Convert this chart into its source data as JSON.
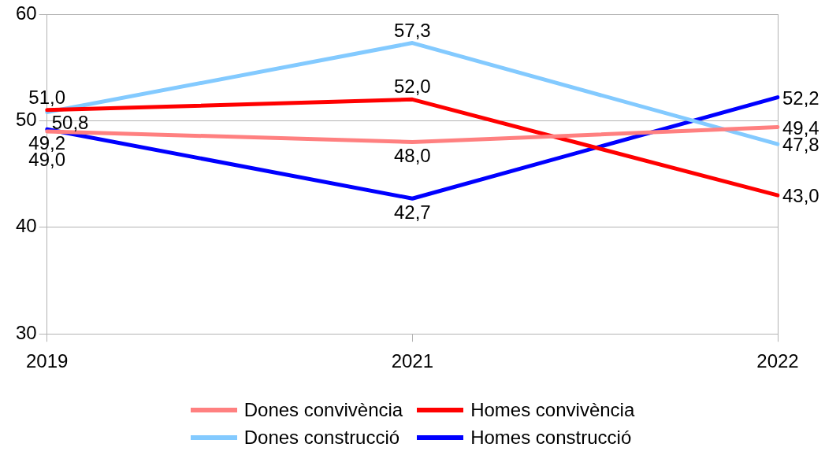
{
  "chart_data": {
    "type": "line",
    "categories": [
      "2019",
      "2021",
      "2022"
    ],
    "ylim": [
      30,
      60
    ],
    "yticks": [
      30,
      40,
      50,
      60
    ],
    "grid": "y",
    "legend": "bottom",
    "marker": "none",
    "line_style": "solid",
    "series": [
      {
        "name": "Dones convivència",
        "color": "#ff8080",
        "values": [
          49.0,
          48.0,
          49.4
        ],
        "value_labels": [
          "49,0",
          "48,0",
          "49,4"
        ]
      },
      {
        "name": "Homes convivència",
        "color": "#ff0000",
        "values": [
          51.0,
          52.0,
          43.0
        ],
        "value_labels": [
          "51,0",
          "52,0",
          "43,0"
        ]
      },
      {
        "name": "Dones construcció",
        "color": "#83caff",
        "values": [
          50.8,
          57.3,
          47.8
        ],
        "value_labels": [
          "50,8",
          "57,3",
          "47,8"
        ]
      },
      {
        "name": "Homes construcció",
        "color": "#0000ff",
        "values": [
          49.2,
          42.7,
          52.2
        ],
        "value_labels": [
          "49,2",
          "42,7",
          "52,2"
        ]
      }
    ]
  }
}
